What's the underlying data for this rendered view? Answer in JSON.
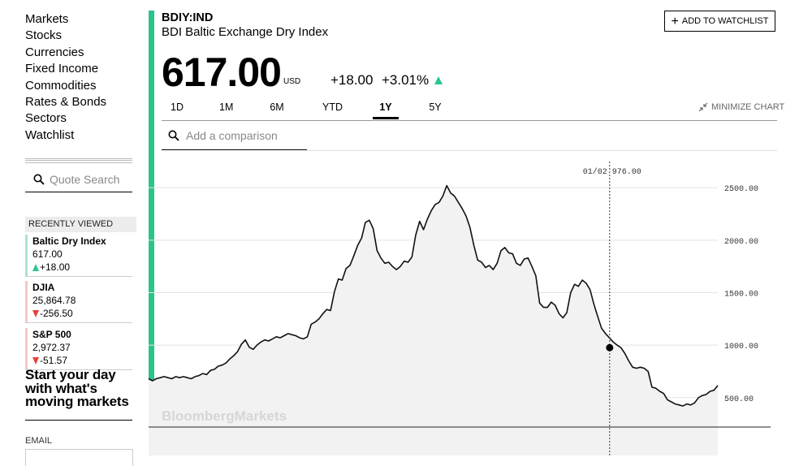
{
  "nav": {
    "items": [
      "Markets",
      "Stocks",
      "Currencies",
      "Fixed Income",
      "Commodities",
      "Rates & Bonds",
      "Sectors",
      "Watchlist"
    ]
  },
  "quote_search": {
    "placeholder": "Quote Search"
  },
  "recently_viewed": {
    "header": "RECENTLY VIEWED",
    "items": [
      {
        "name": "Baltic Dry Index",
        "price": "617.00",
        "change": "+18.00",
        "direction": "up",
        "bar_color": "#a7e6cd"
      },
      {
        "name": "DJIA",
        "price": "25,864.78",
        "change": "-256.50",
        "direction": "down",
        "bar_color": "#f5c7c5"
      },
      {
        "name": "S&P 500",
        "price": "2,972.37",
        "change": "-51.57",
        "direction": "down",
        "bar_color": "#f5c7c5"
      }
    ]
  },
  "promo": {
    "lines": [
      "Start your day",
      "with what's",
      "moving markets"
    ],
    "email_label": "EMAIL"
  },
  "quote": {
    "ticker": "BDIY:IND",
    "name": "BDI Baltic Exchange Dry Index",
    "price": "617.00",
    "currency": "USD",
    "change": "+18.00",
    "change_pct": "+3.01%",
    "direction": "up"
  },
  "watchlist_button": {
    "label": "ADD TO WATCHLIST"
  },
  "tabs": [
    {
      "label": "1D",
      "active": false
    },
    {
      "label": "1M",
      "active": false
    },
    {
      "label": "6M",
      "active": false
    },
    {
      "label": "YTD",
      "active": false
    },
    {
      "label": "1Y",
      "active": true
    },
    {
      "label": "5Y",
      "active": false
    }
  ],
  "minimize_label": "MINIMIZE CHART",
  "comparison": {
    "placeholder": "Add a comparison"
  },
  "colors": {
    "accent": "#2bc48a",
    "up": "#2bc48a",
    "down": "#e8413c",
    "area_fill": "#f2f2f2"
  },
  "icons": {
    "search": "search-icon",
    "plus": "plus-icon",
    "minimize": "minimize-icon",
    "up_arrow": "up-triangle-icon",
    "down_arrow": "down-triangle-icon"
  },
  "chart_data": {
    "type": "area",
    "watermark": "BloombergMarkets",
    "y_ticks": [
      "2500.00",
      "2000.00",
      "1500.00",
      "1000.00",
      "500.00"
    ],
    "y_tick_values": [
      2500,
      2000,
      1500,
      1000,
      500
    ],
    "ylim": [
      220,
      2780
    ],
    "crosshair": {
      "date": "01/02",
      "value": "976.00",
      "y": 976,
      "x_index": 0.81
    },
    "series": [
      {
        "values": [
          680,
          660,
          680,
          690,
          700,
          690,
          680,
          700,
          690,
          700,
          690,
          680,
          700,
          710,
          730,
          720,
          760,
          770,
          800,
          810,
          830,
          870,
          900,
          940,
          1010,
          1050,
          980,
          960,
          1000,
          1030,
          1050,
          1040,
          1060,
          1080,
          1070,
          1090,
          1110,
          1100,
          1090,
          1070,
          1060,
          1080,
          1200,
          1220,
          1250,
          1300,
          1340,
          1330,
          1510,
          1630,
          1620,
          1730,
          1760,
          1850,
          1950,
          2020,
          2170,
          2190,
          2110,
          1900,
          1830,
          1780,
          1790,
          1750,
          1720,
          1750,
          1800,
          1790,
          1840,
          2050,
          2180,
          2100,
          2200,
          2280,
          2340,
          2360,
          2420,
          2520,
          2450,
          2420,
          2360,
          2300,
          2230,
          2120,
          1950,
          1810,
          1790,
          1740,
          1760,
          1720,
          1780,
          1900,
          1930,
          1880,
          1870,
          1780,
          1760,
          1820,
          1830,
          1750,
          1660,
          1400,
          1360,
          1360,
          1410,
          1380,
          1300,
          1260,
          1310,
          1500,
          1580,
          1560,
          1620,
          1590,
          1530,
          1390,
          1270,
          1160,
          1110,
          1070,
          1030,
          1000,
          976,
          920,
          850,
          790,
          780,
          790,
          780,
          750,
          600,
          590,
          560,
          540,
          480,
          460,
          440,
          430,
          420,
          440,
          430,
          450,
          500,
          520,
          530,
          560,
          570,
          617
        ]
      }
    ],
    "grid": "horizontal"
  }
}
